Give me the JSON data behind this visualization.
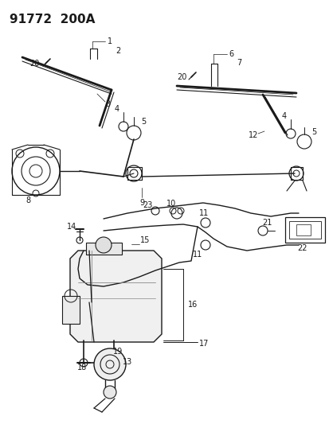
{
  "title": "91772  200A",
  "bg_color": "#ffffff",
  "line_color": "#1a1a1a",
  "figsize": [
    4.14,
    5.33
  ],
  "dpi": 100,
  "xlim": [
    0,
    414
  ],
  "ylim": [
    0,
    533
  ]
}
